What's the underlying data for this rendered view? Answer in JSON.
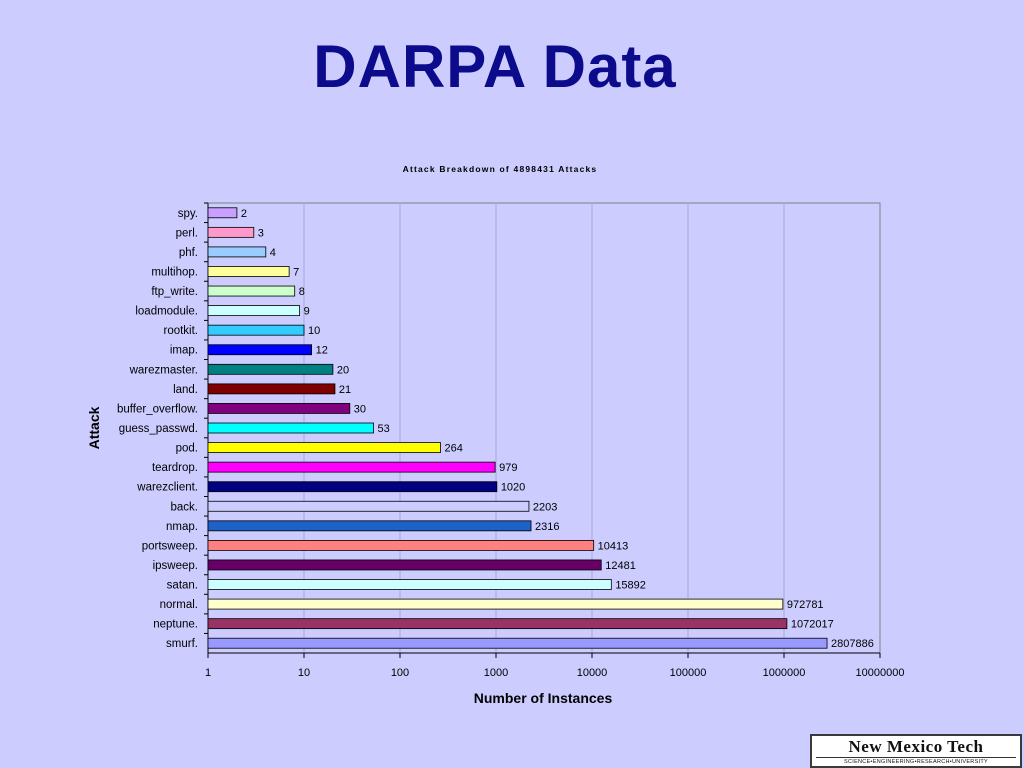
{
  "slide": {
    "title": "DARPA Data",
    "logo_text": "New Mexico Tech",
    "logo_subtext": "SCIENCE•ENGINEERING•RESEARCH•UNIVERSITY"
  },
  "chart_data": {
    "type": "bar",
    "orientation": "horizontal",
    "title": "Attack Breakdown of 4898431 Attacks",
    "xlabel": "Number of Instances",
    "ylabel": "Attack",
    "x_scale": "log",
    "xlim": [
      1,
      10000000
    ],
    "x_ticks": [
      "1",
      "10",
      "100",
      "1000",
      "10000",
      "100000",
      "1000000",
      "10000000"
    ],
    "grid": "vertical gridlines",
    "legend": "none",
    "bars": [
      {
        "category": "spy.",
        "value": 2,
        "color": "#c9a0ff"
      },
      {
        "category": "perl.",
        "value": 3,
        "color": "#ff99cc"
      },
      {
        "category": "phf.",
        "value": 4,
        "color": "#99ccff"
      },
      {
        "category": "multihop.",
        "value": 7,
        "color": "#ffff99"
      },
      {
        "category": "ftp_write.",
        "value": 8,
        "color": "#ccffcc"
      },
      {
        "category": "loadmodule.",
        "value": 9,
        "color": "#ccffff"
      },
      {
        "category": "rootkit.",
        "value": 10,
        "color": "#33ccff"
      },
      {
        "category": "imap.",
        "value": 12,
        "color": "#0000ff"
      },
      {
        "category": "warezmaster.",
        "value": 20,
        "color": "#008080"
      },
      {
        "category": "land.",
        "value": 21,
        "color": "#800000"
      },
      {
        "category": "buffer_overflow.",
        "value": 30,
        "color": "#800080"
      },
      {
        "category": "guess_passwd.",
        "value": 53,
        "color": "#00ffff"
      },
      {
        "category": "pod.",
        "value": 264,
        "color": "#ffff00"
      },
      {
        "category": "teardrop.",
        "value": 979,
        "color": "#ff00ff"
      },
      {
        "category": "warezclient.",
        "value": 1020,
        "color": "#000080"
      },
      {
        "category": "back.",
        "value": 2203,
        "color": "#ccccff"
      },
      {
        "category": "nmap.",
        "value": 2316,
        "color": "#1f62c7"
      },
      {
        "category": "portsweep.",
        "value": 10413,
        "color": "#ff8080"
      },
      {
        "category": "ipsweep.",
        "value": 12481,
        "color": "#660066"
      },
      {
        "category": "satan.",
        "value": 15892,
        "color": "#ccffff"
      },
      {
        "category": "normal.",
        "value": 972781,
        "color": "#ffffcc"
      },
      {
        "category": "neptune.",
        "value": 1072017,
        "color": "#993366"
      },
      {
        "category": "smurf.",
        "value": 2807886,
        "color": "#9999ff"
      }
    ]
  }
}
